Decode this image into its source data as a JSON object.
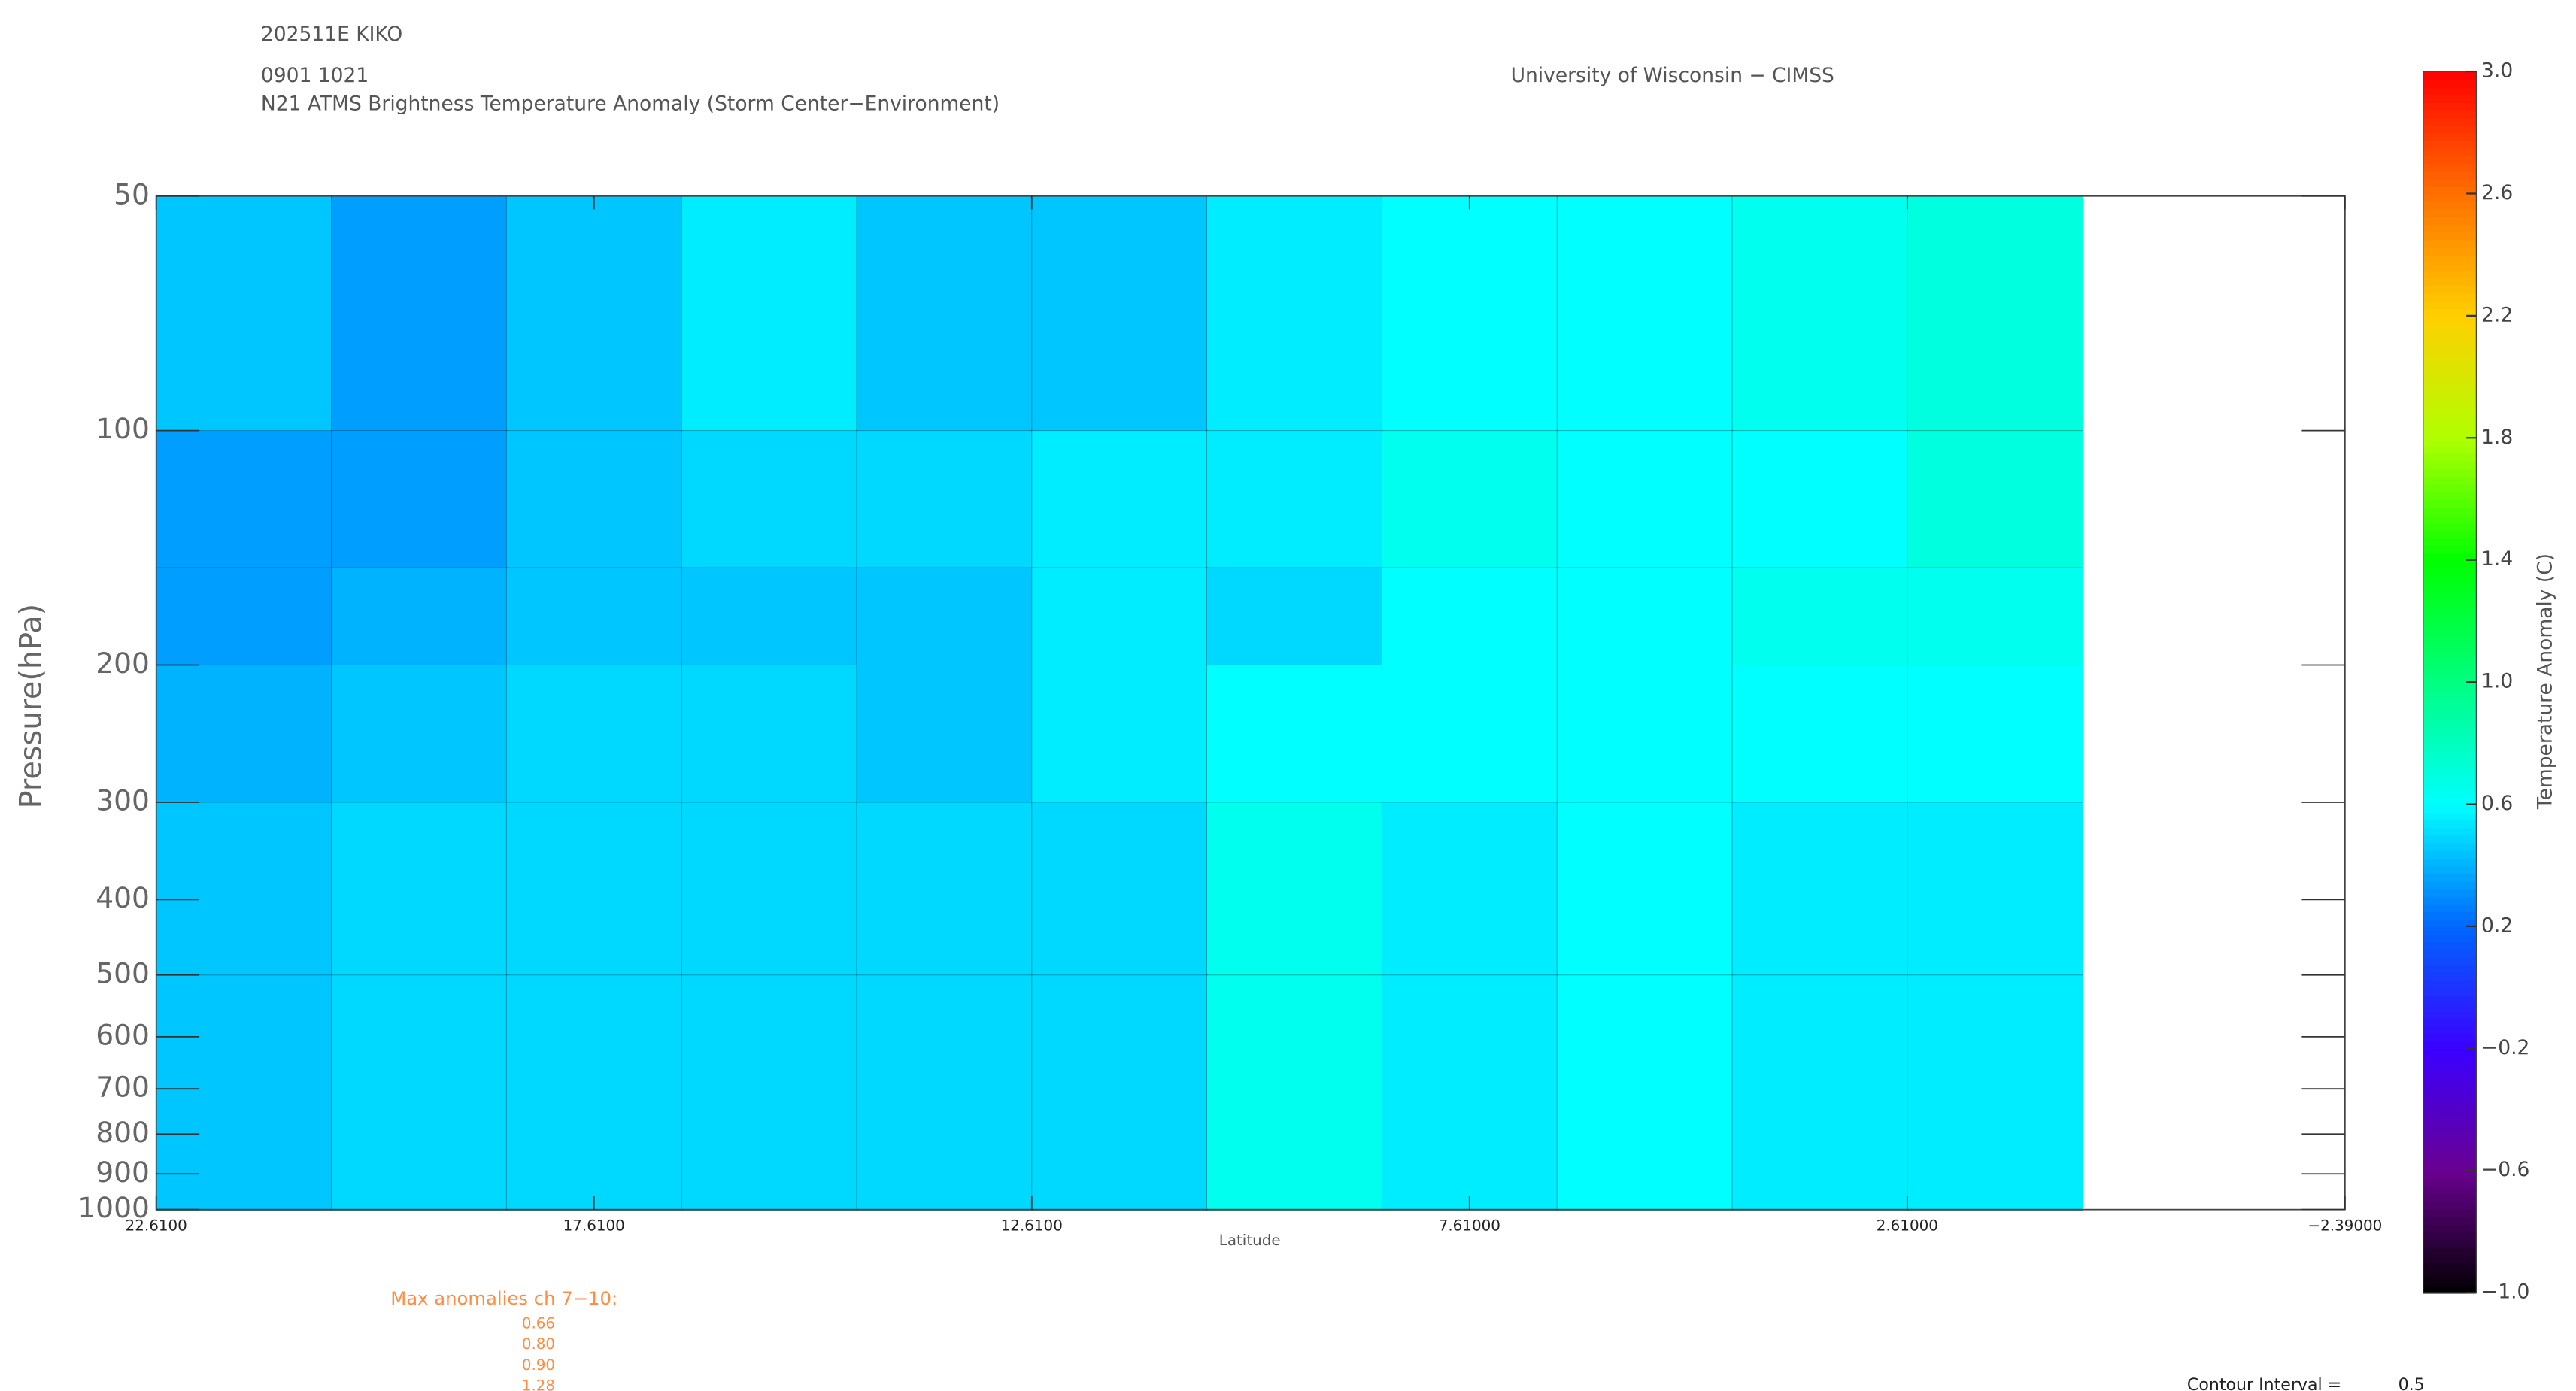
{
  "chart_data": {
    "type": "heatmap",
    "title": "202511E KIKO",
    "subtitle": "0901 1021",
    "description": "N21 ATMS Brightness Temperature Anomaly (Storm Center−Environment)",
    "credit": "University of Wisconsin − CIMSS",
    "x_label": "Latitude",
    "y_label": "Pressure(hPa)",
    "colorbar_label": "Temperature Anomaly (C)",
    "x_edges": [
      22.61,
      20.61,
      18.61,
      16.61,
      14.61,
      12.61,
      10.61,
      8.61,
      6.61,
      4.61,
      2.61,
      0.61
    ],
    "y_edges": [
      50,
      100,
      150,
      200,
      300,
      500,
      1000
    ],
    "values": [
      [
        0.45,
        0.35,
        0.45,
        0.55,
        0.45,
        0.45,
        0.55,
        0.6,
        0.6,
        0.65,
        0.7
      ],
      [
        0.35,
        0.35,
        0.45,
        0.5,
        0.5,
        0.55,
        0.55,
        0.65,
        0.6,
        0.6,
        0.7
      ],
      [
        0.35,
        0.4,
        0.45,
        0.45,
        0.45,
        0.55,
        0.5,
        0.6,
        0.6,
        0.65,
        0.65
      ],
      [
        0.4,
        0.45,
        0.5,
        0.5,
        0.45,
        0.55,
        0.6,
        0.6,
        0.6,
        0.6,
        0.6
      ],
      [
        0.45,
        0.5,
        0.5,
        0.5,
        0.5,
        0.5,
        0.65,
        0.55,
        0.6,
        0.55,
        0.55
      ],
      [
        0.45,
        0.5,
        0.5,
        0.5,
        0.5,
        0.5,
        0.65,
        0.55,
        0.6,
        0.55,
        0.55
      ]
    ],
    "xlim": [
      22.61,
      -2.39
    ],
    "xticks": [
      {
        "value": 22.61,
        "label": "22.6100"
      },
      {
        "value": 17.61,
        "label": "17.6100"
      },
      {
        "value": 12.61,
        "label": "12.6100"
      },
      {
        "value": 7.61,
        "label": "7.61000"
      },
      {
        "value": 2.61,
        "label": "2.61000"
      },
      {
        "value": -2.39,
        "label": "−2.39000"
      }
    ],
    "ylim": [
      50,
      1000
    ],
    "log_y": true,
    "yticks": [
      50,
      100,
      200,
      300,
      400,
      500,
      600,
      700,
      800,
      900,
      1000
    ],
    "zlim": [
      -1,
      3
    ],
    "zticks": [
      {
        "value": -1,
        "label": "−1.0"
      },
      {
        "value": -0.6,
        "label": "−0.6"
      },
      {
        "value": -0.2,
        "label": "−0.2"
      },
      {
        "value": 0.2,
        "label": "0.2"
      },
      {
        "value": 0.6,
        "label": "0.6"
      },
      {
        "value": 1,
        "label": "1.0"
      },
      {
        "value": 1.4,
        "label": "1.4"
      },
      {
        "value": 1.8,
        "label": "1.8"
      },
      {
        "value": 2.2,
        "label": "2.2"
      },
      {
        "value": 2.6,
        "label": "2.6"
      },
      {
        "value": 3,
        "label": "3.0"
      }
    ],
    "colorscale": [
      "#000000",
      "#6a0090",
      "#3a00ff",
      "#0066ff",
      "#00ffff",
      "#00ff80",
      "#00ff00",
      "#b0ff00",
      "#ffd000",
      "#ff7000",
      "#ff0000"
    ],
    "max_anomalies": {
      "label": "Max anomalies ch 7−10:",
      "values": [
        0.66,
        0.8,
        0.9,
        1.28
      ],
      "value_labels": [
        "0.66",
        "0.80",
        "0.90",
        "1.28"
      ],
      "color": "#ff8c40"
    },
    "contour_interval_label": "Contour Interval =",
    "contour_interval": 0.5
  }
}
